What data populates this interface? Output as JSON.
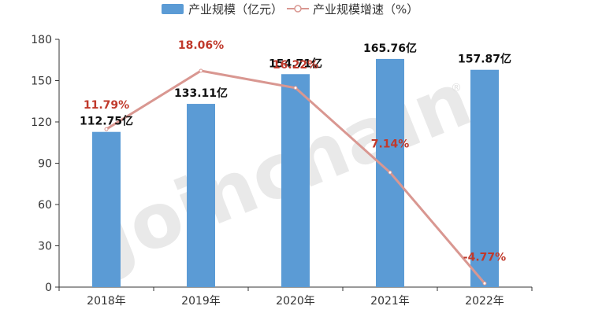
{
  "colors": {
    "bar": "#5b9bd5",
    "line": "#d99791",
    "growth_label": "#c0392b",
    "axis": "#333333",
    "watermark": "#e9e9e9"
  },
  "watermark": {
    "text": "Joinchain",
    "mark": "®"
  },
  "chart_data": {
    "type": "bar",
    "categories": [
      "2018年",
      "2019年",
      "2020年",
      "2021年",
      "2022年"
    ],
    "series": [
      {
        "name": "产业规模（亿元）",
        "type": "bar",
        "values": [
          112.75,
          133.11,
          154.71,
          165.76,
          157.87
        ],
        "labels": [
          "112.75亿",
          "133.11亿",
          "154.71亿",
          "165.76亿",
          "157.87亿"
        ]
      },
      {
        "name": "产业规模增速（%）",
        "type": "line",
        "values": [
          11.79,
          18.06,
          16.22,
          7.14,
          -4.77
        ],
        "labels": [
          "11.79%",
          "18.06%",
          "16.22%",
          "7.14%",
          "-4.77%"
        ]
      }
    ],
    "y_ticks": [
      "0",
      "30",
      "60",
      "90",
      "120",
      "150",
      "180"
    ],
    "ylim": [
      0,
      180
    ],
    "growth_range": [
      -5,
      20
    ],
    "legend_position": "top-center",
    "grid": false
  }
}
